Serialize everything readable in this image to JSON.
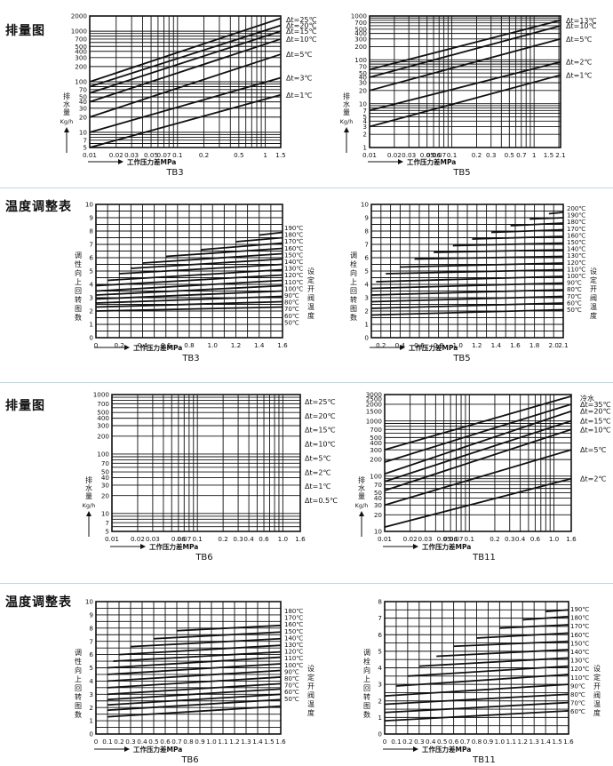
{
  "sections": [
    {
      "title": "排量图"
    },
    {
      "title": "温度调整表"
    },
    {
      "title": "排量图"
    },
    {
      "title": "温度调整表"
    }
  ],
  "labels": {
    "x_axis": "工作压力差MPa",
    "discharge_y": "排水量",
    "discharge_unit": "Kg/h",
    "temp_y": "调性向上回转图数",
    "temp_y_b": "调栓向上回转图数",
    "set_temp": "设定开阀温度"
  },
  "chart_data": [
    {
      "id": "tb3-discharge",
      "type": "line",
      "title": "TB3",
      "xscale": "log",
      "yscale": "log",
      "xlim": [
        0.01,
        1.5
      ],
      "ylim": [
        5,
        2000
      ],
      "x_ticks": [
        "0.01",
        "0.02",
        "0.03",
        "0.05",
        "0.07",
        "0.1",
        "0.2",
        "0.5",
        "1",
        "1.5"
      ],
      "y_ticks": [
        "2000",
        "1000",
        "700",
        "500",
        "400",
        "300",
        "200",
        "100",
        "70",
        "50",
        "40",
        "30",
        "20",
        "10",
        "7",
        "5"
      ],
      "series": [
        {
          "name": "Δt=25℃",
          "x": [
            0.01,
            1.5
          ],
          "y": [
            100,
            1800
          ]
        },
        {
          "name": "Δt=20℃",
          "x": [
            0.01,
            1.5
          ],
          "y": [
            80,
            1300
          ]
        },
        {
          "name": "Δt=15℃",
          "x": [
            0.01,
            1.5
          ],
          "y": [
            60,
            1000
          ]
        },
        {
          "name": "Δt=10℃",
          "x": [
            0.01,
            1.5
          ],
          "y": [
            40,
            700
          ]
        },
        {
          "name": "Δt=5℃",
          "x": [
            0.01,
            1.5
          ],
          "y": [
            20,
            350
          ]
        },
        {
          "name": "Δt=3℃",
          "x": [
            0.01,
            1.5
          ],
          "y": [
            10,
            120
          ]
        },
        {
          "name": "Δt=1℃",
          "x": [
            0.01,
            1.5
          ],
          "y": [
            5,
            55
          ]
        }
      ]
    },
    {
      "id": "tb5-discharge",
      "type": "line",
      "title": "TB5",
      "xscale": "log",
      "yscale": "log",
      "xlim": [
        0.01,
        2.1
      ],
      "ylim": [
        1,
        1000
      ],
      "x_ticks": [
        "0.01",
        "0.02",
        "0.03",
        "0.05",
        "0.06",
        "0.07",
        "0.1",
        "0.2",
        "0.3",
        "0.5",
        "0.7",
        "1",
        "1.5",
        "2.1"
      ],
      "y_ticks": [
        "1000",
        "700",
        "500",
        "400",
        "300",
        "200",
        "100",
        "70",
        "50",
        "40",
        "30",
        "20",
        "10",
        "7",
        "5",
        "4",
        "3",
        "2",
        "1"
      ],
      "series": [
        {
          "name": "Δt=13℃",
          "x": [
            0.01,
            2.1
          ],
          "y": [
            60,
            800
          ]
        },
        {
          "name": "Δt=10℃",
          "x": [
            0.01,
            2.1
          ],
          "y": [
            40,
            600
          ]
        },
        {
          "name": "Δt=5℃",
          "x": [
            0.01,
            2.1
          ],
          "y": [
            20,
            300
          ]
        },
        {
          "name": "Δt=2℃",
          "x": [
            0.01,
            2.1
          ],
          "y": [
            7,
            90
          ]
        },
        {
          "name": "Δt=1℃",
          "x": [
            0.01,
            2.1
          ],
          "y": [
            3,
            45
          ]
        }
      ]
    },
    {
      "id": "tb3-temp",
      "type": "line",
      "title": "TB3",
      "xlim": [
        0,
        1.6
      ],
      "ylim": [
        0,
        10
      ],
      "x_ticks": [
        "0",
        "0.2",
        "0.4",
        "0.6",
        "0.8",
        "1.0",
        "1.2",
        "1.4",
        "1.6"
      ],
      "y_ticks": [
        "0",
        "1",
        "2",
        "3",
        "4",
        "5",
        "6",
        "7",
        "8",
        "9",
        "10"
      ],
      "series": [
        {
          "name": "190℃",
          "x": [
            1.4,
            1.6
          ],
          "y": [
            7.7,
            7.9
          ]
        },
        {
          "name": "180℃",
          "x": [
            1.2,
            1.6
          ],
          "y": [
            7.2,
            7.5
          ]
        },
        {
          "name": "170℃",
          "x": [
            0.9,
            1.6
          ],
          "y": [
            6.6,
            7.1
          ]
        },
        {
          "name": "160℃",
          "x": [
            0.6,
            1.6
          ],
          "y": [
            6.1,
            6.7
          ]
        },
        {
          "name": "150℃",
          "x": [
            0.4,
            1.6
          ],
          "y": [
            5.6,
            6.3
          ]
        },
        {
          "name": "140℃",
          "x": [
            0.3,
            1.6
          ],
          "y": [
            5.2,
            5.9
          ]
        },
        {
          "name": "130℃",
          "x": [
            0.2,
            1.6
          ],
          "y": [
            4.8,
            5.5
          ]
        },
        {
          "name": "120℃",
          "x": [
            0.1,
            1.6
          ],
          "y": [
            4.3,
            5.1
          ]
        },
        {
          "name": "110℃",
          "x": [
            0,
            1.6
          ],
          "y": [
            3.9,
            4.7
          ]
        },
        {
          "name": "100℃",
          "x": [
            0,
            1.6
          ],
          "y": [
            3.5,
            4.3
          ]
        },
        {
          "name": "90℃",
          "x": [
            0,
            1.6
          ],
          "y": [
            3.2,
            3.9
          ]
        },
        {
          "name": "80℃",
          "x": [
            0,
            1.6
          ],
          "y": [
            2.9,
            3.5
          ]
        },
        {
          "name": "70℃",
          "x": [
            0,
            1.6
          ],
          "y": [
            2.6,
            3.1
          ]
        },
        {
          "name": "60℃",
          "x": [
            0,
            1.6
          ],
          "y": [
            2.3,
            2.7
          ]
        },
        {
          "name": "50℃",
          "x": [
            0,
            1.6
          ],
          "y": [
            2.0,
            2.3
          ]
        }
      ]
    },
    {
      "id": "tb5-temp",
      "type": "line",
      "title": "TB5",
      "xlim": [
        0.1,
        2.1
      ],
      "ylim": [
        0,
        10
      ],
      "x_ticks": [
        "0.2",
        "0.4",
        "0.6",
        "0.8",
        "1.0",
        "1.2",
        "1.4",
        "1.6",
        "1.8",
        "2.0",
        "2.1"
      ],
      "y_ticks": [
        "0",
        "1",
        "2",
        "3",
        "4",
        "5",
        "6",
        "7",
        "8",
        "9",
        "10"
      ],
      "series": [
        {
          "name": "200℃",
          "x": [
            1.95,
            2.1
          ],
          "y": [
            9.3,
            9.4
          ]
        },
        {
          "name": "190℃",
          "x": [
            1.75,
            2.1
          ],
          "y": [
            8.9,
            9.0
          ]
        },
        {
          "name": "180℃",
          "x": [
            1.55,
            2.1
          ],
          "y": [
            8.4,
            8.6
          ]
        },
        {
          "name": "170℃",
          "x": [
            1.35,
            2.1
          ],
          "y": [
            7.9,
            8.1
          ]
        },
        {
          "name": "160℃",
          "x": [
            1.15,
            2.1
          ],
          "y": [
            7.4,
            7.6
          ]
        },
        {
          "name": "150℃",
          "x": [
            0.95,
            2.1
          ],
          "y": [
            6.9,
            7.1
          ]
        },
        {
          "name": "140℃",
          "x": [
            0.75,
            2.1
          ],
          "y": [
            6.4,
            6.6
          ]
        },
        {
          "name": "130℃",
          "x": [
            0.55,
            2.1
          ],
          "y": [
            5.9,
            6.1
          ]
        },
        {
          "name": "120℃",
          "x": [
            0.4,
            2.1
          ],
          "y": [
            5.3,
            5.6
          ]
        },
        {
          "name": "110℃",
          "x": [
            0.25,
            2.1
          ],
          "y": [
            4.8,
            5.1
          ]
        },
        {
          "name": "100℃",
          "x": [
            0.15,
            2.1
          ],
          "y": [
            4.2,
            4.6
          ]
        },
        {
          "name": "90℃",
          "x": [
            0.1,
            2.1
          ],
          "y": [
            3.7,
            4.1
          ]
        },
        {
          "name": "80℃",
          "x": [
            0.1,
            2.1
          ],
          "y": [
            3.2,
            3.6
          ]
        },
        {
          "name": "70℃",
          "x": [
            0.1,
            2.1
          ],
          "y": [
            2.7,
            3.1
          ]
        },
        {
          "name": "60℃",
          "x": [
            0.1,
            2.1
          ],
          "y": [
            2.2,
            2.6
          ]
        },
        {
          "name": "50℃",
          "x": [
            0.1,
            2.1
          ],
          "y": [
            1.7,
            2.1
          ]
        }
      ]
    },
    {
      "id": "tb6-discharge",
      "type": "line",
      "title": "TB6",
      "xscale": "log",
      "yscale": "log",
      "xlim": [
        0.01,
        1.6
      ],
      "ylim": [
        5,
        1000
      ],
      "x_ticks": [
        "0.01",
        "0.02",
        "0.03",
        "0.06",
        "0.07",
        "0.1",
        "0.2",
        "0.3",
        "0.4",
        "0.6",
        "1.0",
        "1.6"
      ],
      "y_ticks": [
        "1000",
        "700",
        "500",
        "400",
        "300",
        "200",
        "100",
        "70",
        "50",
        "40",
        "30",
        "20",
        "10",
        "7",
        "5"
      ],
      "series": [
        {
          "name": "Δt=25℃"
        },
        {
          "name": "Δt=20℃"
        },
        {
          "name": "Δt=15℃"
        },
        {
          "name": "Δt=10℃"
        },
        {
          "name": "Δt=5℃"
        },
        {
          "name": "Δt=2℃"
        },
        {
          "name": "Δt=1℃"
        },
        {
          "name": "Δt=0.5℃"
        }
      ]
    },
    {
      "id": "tb11-discharge",
      "type": "line",
      "title": "TB11",
      "xscale": "log",
      "yscale": "log",
      "xlim": [
        0.01,
        1.6
      ],
      "ylim": [
        10,
        3000
      ],
      "x_ticks": [
        "0.01",
        "0.02",
        "0.03",
        "0.05",
        "0.06",
        "0.07",
        "0.1",
        "0.2",
        "0.3",
        "0.4",
        "0.6",
        "1.0",
        "1.6"
      ],
      "y_ticks": [
        "3000",
        "2500",
        "2000",
        "1500",
        "1000",
        "700",
        "500",
        "400",
        "300",
        "200",
        "100",
        "70",
        "50",
        "40",
        "30",
        "20",
        "10"
      ],
      "series": [
        {
          "name": "冷水",
          "x": [
            0.01,
            1.6
          ],
          "y": [
            300,
            2800
          ]
        },
        {
          "name": "Δt=35℃",
          "x": [
            0.01,
            1.6
          ],
          "y": [
            180,
            2000
          ]
        },
        {
          "name": "Δt=20℃",
          "x": [
            0.01,
            1.6
          ],
          "y": [
            110,
            1500
          ]
        },
        {
          "name": "Δt=15℃",
          "x": [
            0.01,
            1.6
          ],
          "y": [
            80,
            1000
          ]
        },
        {
          "name": "Δt=10℃",
          "x": [
            0.01,
            1.6
          ],
          "y": [
            55,
            700
          ]
        },
        {
          "name": "Δt=5℃",
          "x": [
            0.01,
            1.6
          ],
          "y": [
            30,
            300
          ]
        },
        {
          "name": "Δt=2℃",
          "x": [
            0.01,
            1.6
          ],
          "y": [
            12,
            90
          ]
        }
      ]
    },
    {
      "id": "tb6-temp",
      "type": "line",
      "title": "TB6",
      "xlim": [
        0,
        1.6
      ],
      "ylim": [
        0,
        10
      ],
      "x_ticks": [
        "0",
        "0.1",
        "0.2",
        "0.3",
        "0.4",
        "0.5",
        "0.6",
        "0.7",
        "0.8",
        "0.9",
        "1.0",
        "1.1",
        "1.2",
        "1.3",
        "1.4",
        "1.5",
        "1.6"
      ],
      "y_ticks": [
        "0",
        "1",
        "2",
        "3",
        "4",
        "5",
        "6",
        "7",
        "8",
        "9",
        "10"
      ],
      "series": [
        {
          "name": "180℃",
          "x": [
            0.7,
            1.6
          ],
          "y": [
            7.8,
            8.2
          ]
        },
        {
          "name": "170℃",
          "x": [
            0.5,
            1.6
          ],
          "y": [
            7.2,
            7.7
          ]
        },
        {
          "name": "160℃",
          "x": [
            0.3,
            1.6
          ],
          "y": [
            6.6,
            7.2
          ]
        },
        {
          "name": "150℃",
          "x": [
            0.2,
            1.6
          ],
          "y": [
            6.0,
            6.7
          ]
        },
        {
          "name": "140℃",
          "x": [
            0.15,
            1.6
          ],
          "y": [
            5.5,
            6.2
          ]
        },
        {
          "name": "130℃",
          "x": [
            0.1,
            1.6
          ],
          "y": [
            5.0,
            5.8
          ]
        },
        {
          "name": "120℃",
          "x": [
            0.1,
            1.6
          ],
          "y": [
            4.5,
            5.3
          ]
        },
        {
          "name": "110℃",
          "x": [
            0.1,
            1.6
          ],
          "y": [
            4.0,
            4.8
          ]
        },
        {
          "name": "100℃",
          "x": [
            0.1,
            1.6
          ],
          "y": [
            3.5,
            4.3
          ]
        },
        {
          "name": "90℃",
          "x": [
            0.1,
            1.6
          ],
          "y": [
            3.0,
            3.8
          ]
        },
        {
          "name": "80℃",
          "x": [
            0.1,
            1.6
          ],
          "y": [
            2.6,
            3.4
          ]
        },
        {
          "name": "70℃",
          "x": [
            0.1,
            1.6
          ],
          "y": [
            2.2,
            3.0
          ]
        },
        {
          "name": "60℃",
          "x": [
            0.1,
            1.6
          ],
          "y": [
            1.8,
            2.6
          ]
        },
        {
          "name": "50℃",
          "x": [
            0.1,
            1.6
          ],
          "y": [
            1.3,
            2.1
          ]
        }
      ]
    },
    {
      "id": "tb11-temp",
      "type": "line",
      "title": "TB11",
      "xlim": [
        0,
        1.6
      ],
      "ylim": [
        0,
        8
      ],
      "x_ticks": [
        "0",
        "0.1",
        "0.2",
        "0.3",
        "0.4",
        "0.5",
        "0.6",
        "0.7",
        "0.8",
        "0.9",
        "1.0",
        "1.1",
        "1.2",
        "1.3",
        "1.4",
        "1.5",
        "1.6"
      ],
      "y_ticks": [
        "0",
        "1",
        "2",
        "3",
        "4",
        "5",
        "6",
        "7",
        "8"
      ],
      "series": [
        {
          "name": "190℃",
          "x": [
            1.4,
            1.6
          ],
          "y": [
            7.4,
            7.5
          ]
        },
        {
          "name": "180℃",
          "x": [
            1.2,
            1.6
          ],
          "y": [
            6.9,
            7.1
          ]
        },
        {
          "name": "170℃",
          "x": [
            1.0,
            1.6
          ],
          "y": [
            6.4,
            6.6
          ]
        },
        {
          "name": "160℃",
          "x": [
            0.8,
            1.6
          ],
          "y": [
            5.8,
            6.1
          ]
        },
        {
          "name": "150℃",
          "x": [
            0.6,
            1.6
          ],
          "y": [
            5.3,
            5.6
          ]
        },
        {
          "name": "140℃",
          "x": [
            0.45,
            1.6
          ],
          "y": [
            4.7,
            5.1
          ]
        },
        {
          "name": "130℃",
          "x": [
            0.3,
            1.6
          ],
          "y": [
            4.1,
            4.6
          ]
        },
        {
          "name": "120℃",
          "x": [
            0.2,
            1.6
          ],
          "y": [
            3.5,
            4.1
          ]
        },
        {
          "name": "110℃",
          "x": [
            0.1,
            1.6
          ],
          "y": [
            2.9,
            3.6
          ]
        },
        {
          "name": "90℃",
          "x": [
            0,
            1.6
          ],
          "y": [
            2.3,
            3.0
          ]
        },
        {
          "name": "80℃",
          "x": [
            0,
            1.6
          ],
          "y": [
            1.8,
            2.4
          ]
        },
        {
          "name": "70℃",
          "x": [
            0,
            1.6
          ],
          "y": [
            1.3,
            1.9
          ]
        },
        {
          "name": "60℃",
          "x": [
            0,
            1.6
          ],
          "y": [
            0.8,
            1.4
          ]
        }
      ]
    }
  ]
}
